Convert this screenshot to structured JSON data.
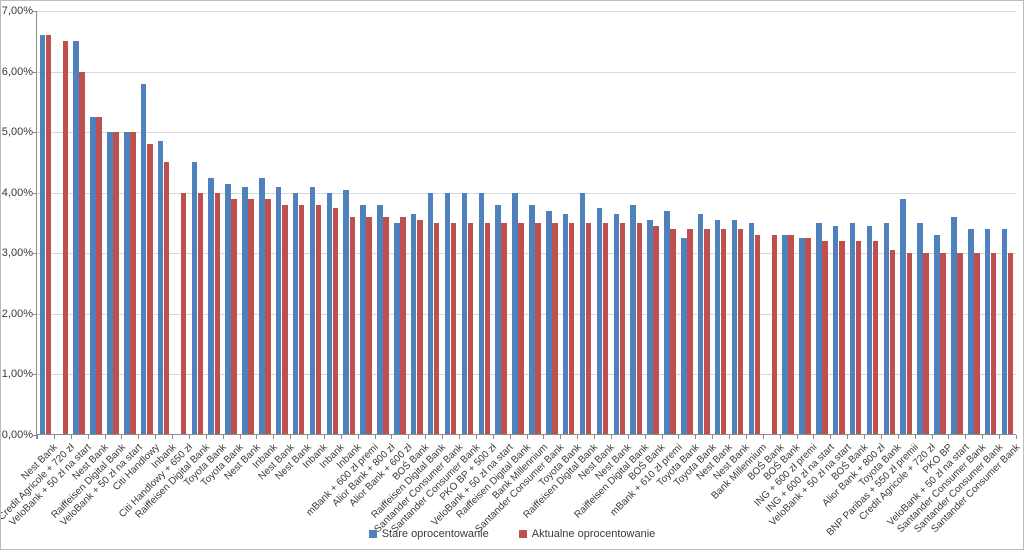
{
  "chart_data": {
    "type": "bar",
    "title": "",
    "xlabel": "",
    "ylabel": "",
    "ylim": [
      0,
      7
    ],
    "grid": true,
    "legend_position": "bottom-center",
    "y_tick_labels": [
      "0,00%",
      "1,00%",
      "2,00%",
      "3,00%",
      "4,00%",
      "5,00%",
      "6,00%",
      "7,00%"
    ],
    "categories": [
      "Nest Bank",
      "Credit Agricole + 720 zł",
      "VeloBank + 50 zł na start",
      "Nest Bank",
      "Raiffeisen Digital Bank",
      "VeloBank + 50 zł na start",
      "Citi Handlowy",
      "Inbank",
      "Citi Handlowy + 650 zł",
      "Raiffeisen Digital Bank",
      "Toyota Bank",
      "Toyota Bank",
      "Nest Bank",
      "Inbank",
      "Nest Bank",
      "Nest Bank",
      "Inbank",
      "Inbank",
      "Inbank",
      "mBank + 600 zł premi",
      "Alior Bank + 800 zł",
      "Alior Bank + 600 zł",
      "BOŚ Bank",
      "Raiffeisen Digital Bank",
      "Santander Consumer Bank",
      "Santander Consumer Bank",
      "PKO BP + 500 zł",
      "VeloBank + 50 zł na start",
      "Raiffeisen Digital Bank",
      "Bank Millennium",
      "Santander Consumer Bank",
      "Toyota Bank",
      "Raiffeisen Digital Bank",
      "Nest Bank",
      "Nest Bank",
      "Raiffeisen Digital Bank",
      "BOŚ Bank",
      "mBank + 610 zł premi",
      "Toyota Bank",
      "Toyota Bank",
      "Nest Bank",
      "Nest Bank",
      "Bank Millennium",
      "BOŚ Bank",
      "BOŚ Bank",
      "ING + 600 zł premi",
      "ING + 600 zł na start",
      "VeloBank + 50 zł na start",
      "BOŚ Bank",
      "Alior Bank + 800 zł",
      "Toyota Bank",
      "BNP Paribas + 550 zł premii",
      "Credit Agricole + 720 zł",
      "PKO BP",
      "VeloBank + 50 zł na start",
      "Santander Consumer Bank",
      "Santander Consumer Bank",
      "Santander Consumer Bank"
    ],
    "series": [
      {
        "name": "Stare oprocentowanie",
        "color": "#4F81BD",
        "values": [
          6.6,
          null,
          6.5,
          5.25,
          5.0,
          5.0,
          5.8,
          4.85,
          null,
          4.5,
          4.25,
          4.15,
          4.1,
          4.25,
          4.1,
          4.0,
          4.1,
          4.0,
          4.05,
          3.8,
          3.8,
          3.5,
          3.65,
          4.0,
          4.0,
          4.0,
          4.0,
          3.8,
          4.0,
          3.8,
          3.7,
          3.65,
          4.0,
          3.75,
          3.65,
          3.8,
          3.55,
          3.7,
          3.25,
          3.65,
          3.55,
          3.55,
          3.5,
          null,
          3.3,
          3.25,
          3.5,
          3.45,
          3.5,
          3.45,
          3.5,
          3.9,
          3.5,
          3.3,
          3.6,
          3.4,
          3.4,
          3.4
        ]
      },
      {
        "name": "Aktualne oprocentowanie",
        "color": "#C0504D",
        "values": [
          6.6,
          6.5,
          6.0,
          5.25,
          5.0,
          5.0,
          4.8,
          4.5,
          4.0,
          4.0,
          4.0,
          3.9,
          3.9,
          3.9,
          3.8,
          3.8,
          3.8,
          3.75,
          3.6,
          3.6,
          3.6,
          3.6,
          3.55,
          3.5,
          3.5,
          3.5,
          3.5,
          3.5,
          3.5,
          3.5,
          3.5,
          3.5,
          3.5,
          3.5,
          3.5,
          3.5,
          3.45,
          3.4,
          3.4,
          3.4,
          3.4,
          3.4,
          3.3,
          3.3,
          3.3,
          3.25,
          3.2,
          3.2,
          3.2,
          3.2,
          3.05,
          3.0,
          3.0,
          3.0,
          3.0,
          3.0,
          3.0,
          3.0
        ]
      }
    ],
    "colors": {
      "gridline": "#d9d9d9",
      "axis": "#8c8c8c",
      "text": "#3a3a3a",
      "background": "#ffffff"
    }
  }
}
